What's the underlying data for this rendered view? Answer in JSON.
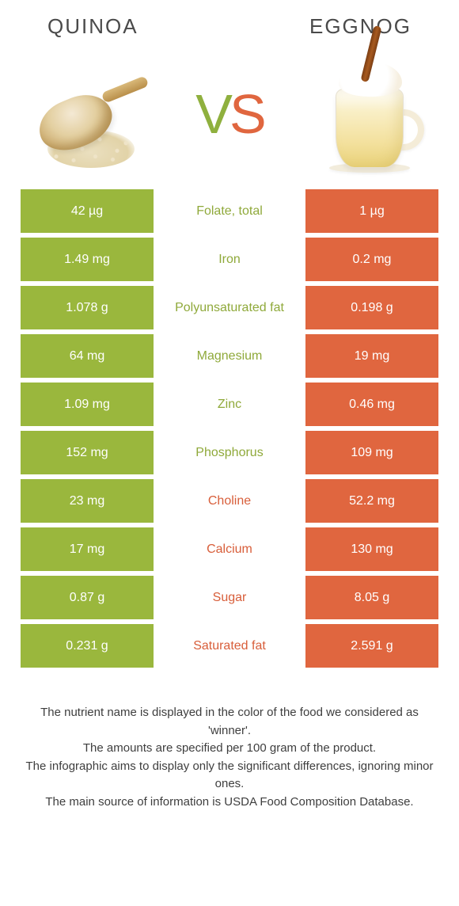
{
  "colors": {
    "left": "#9ab73d",
    "right": "#e0663f",
    "left_text": "#8fa93a",
    "right_text": "#d85e3a",
    "white": "#ffffff"
  },
  "header": {
    "left_title": "QUINOA",
    "right_title": "EGGNOG",
    "vs_v": "V",
    "vs_s": "S"
  },
  "rows": [
    {
      "left": "42 µg",
      "label": "Folate, total",
      "right": "1 µg",
      "winner": "left"
    },
    {
      "left": "1.49 mg",
      "label": "Iron",
      "right": "0.2 mg",
      "winner": "left"
    },
    {
      "left": "1.078 g",
      "label": "Polyunsaturated fat",
      "right": "0.198 g",
      "winner": "left"
    },
    {
      "left": "64 mg",
      "label": "Magnesium",
      "right": "19 mg",
      "winner": "left"
    },
    {
      "left": "1.09 mg",
      "label": "Zinc",
      "right": "0.46 mg",
      "winner": "left"
    },
    {
      "left": "152 mg",
      "label": "Phosphorus",
      "right": "109 mg",
      "winner": "left"
    },
    {
      "left": "23 mg",
      "label": "Choline",
      "right": "52.2 mg",
      "winner": "right"
    },
    {
      "left": "17 mg",
      "label": "Calcium",
      "right": "130 mg",
      "winner": "right"
    },
    {
      "left": "0.87 g",
      "label": "Sugar",
      "right": "8.05 g",
      "winner": "right"
    },
    {
      "left": "0.231 g",
      "label": "Saturated fat",
      "right": "2.591 g",
      "winner": "right"
    }
  ],
  "footer": {
    "line1": "The nutrient name is displayed in the color of the food we considered as 'winner'.",
    "line2": "The amounts are specified per 100 gram of the product.",
    "line3": "The infographic aims to display only the significant differences, ignoring minor ones.",
    "line4": "The main source of information is USDA Food Composition Database."
  }
}
